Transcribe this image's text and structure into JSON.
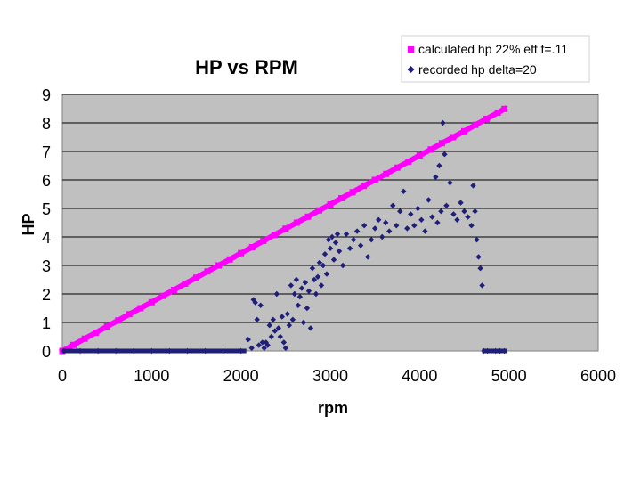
{
  "chart_data": {
    "type": "scatter",
    "title": "HP vs RPM",
    "xlabel": "rpm",
    "ylabel": "HP",
    "xlim": [
      0,
      6000
    ],
    "ylim": [
      0,
      9
    ],
    "xticks": [
      "0",
      "1000",
      "2000",
      "3000",
      "4000",
      "5000",
      "6000"
    ],
    "yticks": [
      "0",
      "1",
      "2",
      "3",
      "4",
      "5",
      "6",
      "7",
      "8",
      "9"
    ],
    "grid": true,
    "plot_background": "#c0c0c0",
    "legend_position": "top-right",
    "series": [
      {
        "name": "calculated hp 22% eff f=.11",
        "marker": "square",
        "color": "#ff00ff",
        "x": [
          0,
          125,
          250,
          375,
          500,
          625,
          750,
          875,
          1000,
          1125,
          1250,
          1375,
          1500,
          1625,
          1750,
          1875,
          2000,
          2125,
          2250,
          2375,
          2500,
          2625,
          2750,
          2875,
          3000,
          3125,
          3250,
          3375,
          3500,
          3625,
          3750,
          3875,
          4000,
          4125,
          4250,
          4375,
          4500,
          4625,
          4750,
          4875,
          4950
        ],
        "y": [
          0.0,
          0.21,
          0.43,
          0.64,
          0.86,
          1.07,
          1.29,
          1.5,
          1.71,
          1.93,
          2.14,
          2.36,
          2.57,
          2.79,
          3.0,
          3.21,
          3.43,
          3.64,
          3.86,
          4.07,
          4.29,
          4.5,
          4.71,
          4.93,
          5.14,
          5.36,
          5.57,
          5.79,
          6.0,
          6.21,
          6.43,
          6.64,
          6.86,
          7.07,
          7.29,
          7.5,
          7.71,
          7.93,
          8.14,
          8.36,
          8.49
        ]
      },
      {
        "name": "recorded hp delta=20",
        "marker": "diamond",
        "color": "#1f1f7a",
        "x": [
          20,
          200,
          400,
          600,
          800,
          1000,
          1200,
          1400,
          1600,
          1800,
          2000,
          2080,
          2120,
          2140,
          2160,
          2180,
          2200,
          2220,
          2240,
          2260,
          2280,
          2300,
          2320,
          2340,
          2360,
          2380,
          2400,
          2420,
          2440,
          2460,
          2480,
          2500,
          2520,
          2540,
          2560,
          2580,
          2600,
          2620,
          2640,
          2660,
          2680,
          2700,
          2720,
          2740,
          2760,
          2780,
          2800,
          2820,
          2840,
          2860,
          2880,
          2900,
          2920,
          2940,
          2960,
          2980,
          3000,
          3020,
          3040,
          3060,
          3080,
          3100,
          3140,
          3180,
          3220,
          3260,
          3300,
          3340,
          3380,
          3420,
          3460,
          3500,
          3540,
          3580,
          3620,
          3660,
          3700,
          3740,
          3780,
          3820,
          3860,
          3900,
          3940,
          3980,
          4020,
          4060,
          4100,
          4140,
          4180,
          4200,
          4220,
          4240,
          4260,
          4280,
          4300,
          4340,
          4380,
          4420,
          4460,
          4500,
          4540,
          4580,
          4600,
          4620,
          4640,
          4660,
          4680,
          4700,
          4720,
          4760,
          4800,
          4850,
          4900,
          4950
        ],
        "y": [
          0,
          0,
          0,
          0,
          0,
          0,
          0,
          0,
          0,
          0,
          0,
          0.4,
          0.1,
          1.8,
          1.7,
          1.1,
          0.2,
          1.6,
          0.3,
          0.1,
          0.3,
          0.2,
          0.9,
          0.5,
          1.1,
          0.7,
          2.0,
          0.8,
          0.5,
          1.2,
          0.3,
          0.1,
          1.3,
          0.9,
          2.3,
          1.1,
          2.0,
          2.5,
          1.6,
          1.9,
          2.2,
          1.0,
          2.4,
          1.5,
          2.1,
          0.8,
          2.9,
          2.5,
          2.0,
          2.6,
          3.1,
          2.3,
          3.0,
          3.4,
          2.7,
          3.9,
          3.6,
          4.0,
          3.2,
          3.8,
          4.1,
          3.5,
          3.0,
          4.1,
          3.6,
          3.9,
          4.2,
          3.7,
          4.4,
          3.3,
          3.9,
          4.3,
          4.6,
          4.0,
          4.5,
          4.2,
          5.1,
          4.4,
          4.9,
          5.6,
          4.3,
          4.8,
          4.4,
          5.0,
          4.6,
          4.2,
          5.3,
          4.7,
          6.1,
          4.5,
          6.5,
          4.9,
          8.0,
          6.9,
          5.1,
          5.9,
          4.8,
          4.6,
          5.2,
          4.9,
          4.7,
          4.4,
          5.8,
          4.9,
          3.9,
          3.3,
          2.9,
          2.3,
          0,
          0,
          0,
          0,
          0,
          0
        ]
      }
    ]
  }
}
